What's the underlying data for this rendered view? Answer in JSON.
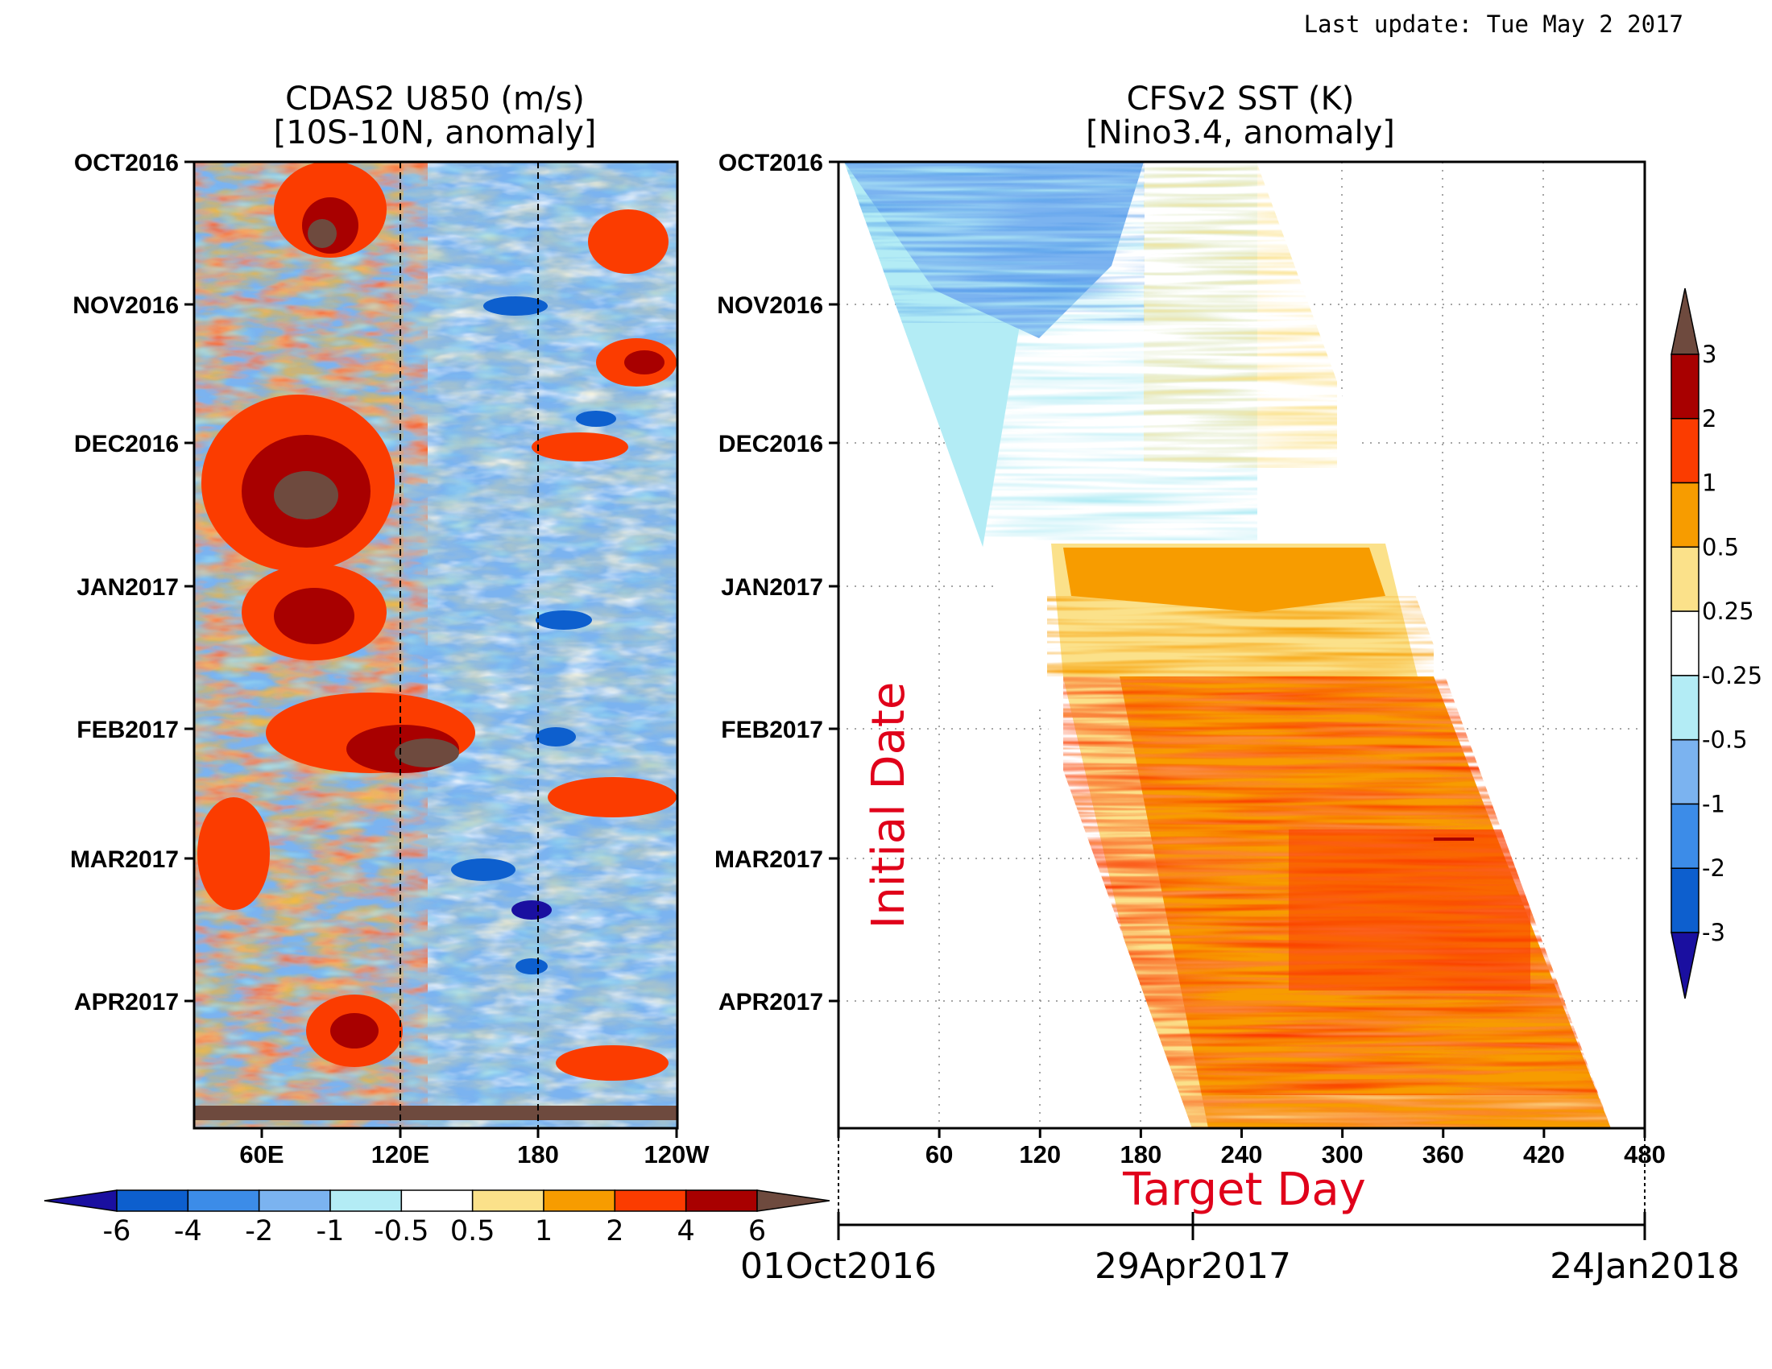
{
  "last_update": "Last update: Tue May 2 2017",
  "chart_data": [
    {
      "type": "heatmap",
      "title_line1": "CDAS2 U850 (m/s)",
      "title_line2": "[10S-10N, anomaly]",
      "xlabel": "",
      "ylabel": "",
      "x_ticks": [
        "60E",
        "120E",
        "180",
        "120W"
      ],
      "y_ticks": [
        "OCT2016",
        "NOV2016",
        "DEC2016",
        "JAN2017",
        "FEB2017",
        "MAR2017",
        "APR2017"
      ],
      "reference_lines": [
        "120E",
        "180"
      ],
      "colorbar": {
        "orientation": "horizontal",
        "levels": [
          "-6",
          "-4",
          "-2",
          "-1",
          "-0.5",
          "0.5",
          "1",
          "2",
          "4",
          "6"
        ],
        "colors": [
          "#1a0fa0",
          "#0d5fce",
          "#3c8ce8",
          "#7bb3f0",
          "#b3ecf5",
          "#ffffff",
          "#fbe18a",
          "#f79c00",
          "#fb3c00",
          "#a80000",
          "#6e4a3e"
        ]
      },
      "series": [
        {
          "x_range": [
            "60E",
            "120E"
          ],
          "y_range": [
            "OCT2016",
            "APR2017"
          ],
          "dominant": "positive"
        },
        {
          "x_range": [
            "120E",
            "120W"
          ],
          "y_range": [
            "OCT2016",
            "APR2017"
          ],
          "dominant": "negative"
        }
      ]
    },
    {
      "type": "heatmap",
      "title_line1": "CFSv2 SST (K)",
      "title_line2": "[Nino3.4, anomaly]",
      "xlabel": "Target Day",
      "ylabel": "Initial Date",
      "x_ticks": [
        "60",
        "120",
        "180",
        "240",
        "300",
        "360",
        "420",
        "480"
      ],
      "xlim": [
        0,
        480
      ],
      "y_ticks": [
        "OCT2016",
        "NOV2016",
        "DEC2016",
        "JAN2017",
        "FEB2017",
        "MAR2017",
        "APR2017"
      ],
      "date_axis": [
        "01Oct2016",
        "29Apr2017",
        "24Jan2018"
      ],
      "colorbar": {
        "orientation": "vertical",
        "levels": [
          "3",
          "2",
          "1",
          "0.5",
          "0.25",
          "-0.25",
          "-0.5",
          "-1",
          "-2",
          "-3"
        ],
        "colors": [
          "#6e4a3e",
          "#a80000",
          "#fb3c00",
          "#f79c00",
          "#fbe18a",
          "#ffffff",
          "#b3ecf5",
          "#7bb3f0",
          "#3c8ce8",
          "#0d5fce",
          "#1a0fa0"
        ]
      },
      "series": [
        {
          "initial_date_range": [
            "OCT2016",
            "DEC2016"
          ],
          "target_day_range": [
            0,
            130
          ],
          "band": "-0.5 to -1"
        },
        {
          "initial_date_range": [
            "OCT2016",
            "DEC2016"
          ],
          "target_day_range": [
            130,
            240
          ],
          "band": "-0.25 to 0.25"
        },
        {
          "initial_date_range": [
            "JAN2017",
            "FEB2017"
          ],
          "target_day_range": [
            130,
            330
          ],
          "band": "0.25 to 1"
        },
        {
          "initial_date_range": [
            "FEB2017",
            "APR2017"
          ],
          "target_day_range": [
            150,
            450
          ],
          "band": "0.5 to 2"
        }
      ]
    }
  ]
}
